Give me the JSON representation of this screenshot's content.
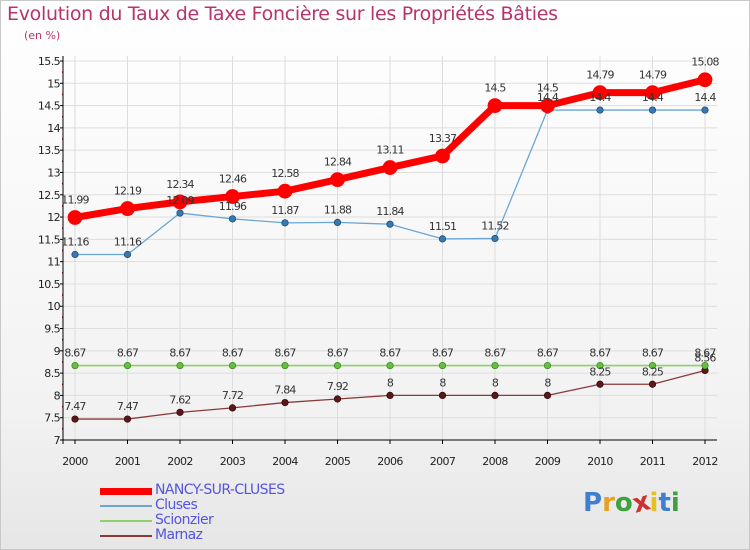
{
  "colors": {
    "title": "#b8336a",
    "axis": "#000000",
    "grid": "#dddddd",
    "tick_red": "#cc0000"
  },
  "chart_data": {
    "type": "line",
    "title": "Evolution du Taux de Taxe Foncière sur les Propriétés Bâties",
    "subtitle": "(en %)",
    "xlabel": "",
    "ylabel": "",
    "x": [
      "2000",
      "2001",
      "2002",
      "2003",
      "2004",
      "2005",
      "2006",
      "2007",
      "2008",
      "2009",
      "2010",
      "2011",
      "2012"
    ],
    "ylim": [
      7,
      15.5
    ],
    "yticks": [
      "7",
      "7.5",
      "8",
      "8.5",
      "9",
      "9.5",
      "10",
      "10.5",
      "11",
      "11.5",
      "12",
      "12.5",
      "13",
      "13.5",
      "14",
      "14.5",
      "15",
      "15.5"
    ],
    "grid": true,
    "legend_position": "bottom-left",
    "series": [
      {
        "name": "NANCY-SUR-CLUSES",
        "color": "#ff0000",
        "width": 7,
        "marker": 7,
        "marker_fill": "#ff0000",
        "marker_stroke": "#ff0000",
        "values": [
          11.99,
          12.19,
          12.34,
          12.46,
          12.58,
          12.84,
          13.11,
          13.37,
          14.5,
          14.5,
          14.79,
          14.79,
          15.08
        ],
        "labels": [
          "11.99",
          "12.19",
          "12.34",
          "12.46",
          "12.58",
          "12.84",
          "13.11",
          "13.37",
          "14.5",
          "14.5",
          "14.79",
          "14.79",
          "15.08"
        ]
      },
      {
        "name": "Cluses",
        "color": "#6aa6d6",
        "width": 1.3,
        "marker": 3.2,
        "marker_fill": "#3a78b0",
        "marker_stroke": "#1f4f7a",
        "values": [
          11.16,
          11.16,
          12.09,
          11.96,
          11.87,
          11.88,
          11.84,
          11.51,
          11.52,
          14.4,
          14.4,
          14.4,
          14.4
        ],
        "labels": [
          "11.16",
          "11.16",
          "12.09",
          "11.96",
          "11.87",
          "11.88",
          "11.84",
          "11.51",
          "11.52",
          "14.4",
          "14.4",
          "14.4",
          "14.4"
        ]
      },
      {
        "name": "Scionzier",
        "color": "#8ed06a",
        "width": 1.6,
        "marker": 3.2,
        "marker_fill": "#66c040",
        "marker_stroke": "#3e8a20",
        "values": [
          8.67,
          8.67,
          8.67,
          8.67,
          8.67,
          8.67,
          8.67,
          8.67,
          8.67,
          8.67,
          8.67,
          8.67,
          8.67
        ],
        "labels": [
          "8.67",
          "8.67",
          "8.67",
          "8.67",
          "8.67",
          "8.67",
          "8.67",
          "8.67",
          "8.67",
          "8.67",
          "8.67",
          "8.67",
          "8.67"
        ]
      },
      {
        "name": "Marnaz",
        "color": "#8b3a3a",
        "width": 1.3,
        "marker": 3.2,
        "marker_fill": "#5a1818",
        "marker_stroke": "#3a0a0a",
        "values": [
          7.47,
          7.47,
          7.62,
          7.72,
          7.84,
          7.92,
          8,
          8,
          8,
          8,
          8.25,
          8.25,
          8.56
        ],
        "labels": [
          "7.47",
          "7.47",
          "7.62",
          "7.72",
          "7.84",
          "7.92",
          "8",
          "8",
          "8",
          "8",
          "8.25",
          "8.25",
          "8.56"
        ]
      }
    ]
  },
  "legend": {
    "items": [
      {
        "label": "NANCY-SUR-CLUSES",
        "swatch_color": "#ff0000",
        "text_color": "#5555dd"
      },
      {
        "label": "Cluses",
        "swatch_color": "#6aa6d6",
        "text_color": "#5555dd"
      },
      {
        "label": "Scionzier",
        "swatch_color": "#8ed06a",
        "text_color": "#5555dd"
      },
      {
        "label": "Marnaz",
        "swatch_color": "#8b3a3a",
        "text_color": "#5555dd"
      }
    ]
  },
  "logo": {
    "text": "Proxiti",
    "letter_colors": [
      "#3f7fd0",
      "#e8a020",
      "#3fa040",
      "#d03030",
      "#e8c020",
      "#3f7fd0",
      "#3fa040"
    ]
  }
}
